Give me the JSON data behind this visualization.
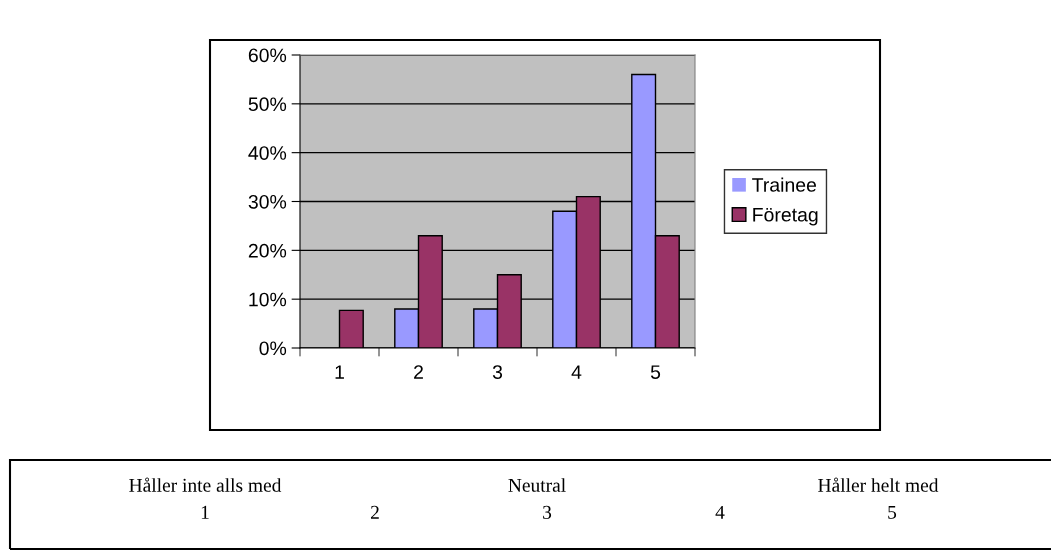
{
  "chart_data": {
    "type": "bar",
    "categories": [
      "1",
      "2",
      "3",
      "4",
      "5"
    ],
    "series": [
      {
        "name": "Trainee",
        "color": "#9999ff",
        "values": [
          0,
          8,
          8,
          28,
          56
        ]
      },
      {
        "name": "Företag",
        "color": "#993366",
        "values": [
          7.7,
          23,
          15,
          31,
          23
        ]
      }
    ],
    "ylim": [
      0,
      60
    ],
    "yticks": [
      {
        "value": 0,
        "label": "0%"
      },
      {
        "value": 10,
        "label": "10%"
      },
      {
        "value": 20,
        "label": "20%"
      },
      {
        "value": 30,
        "label": "30%"
      },
      {
        "value": 40,
        "label": "40%"
      },
      {
        "value": 50,
        "label": "50%"
      },
      {
        "value": 60,
        "label": "60%"
      }
    ],
    "grid": "y",
    "legend": "right",
    "annotations": [
      "Håller inte alls med",
      "Neutral",
      "Håller helt med",
      "1",
      "2",
      "3",
      "4",
      "5"
    ]
  }
}
